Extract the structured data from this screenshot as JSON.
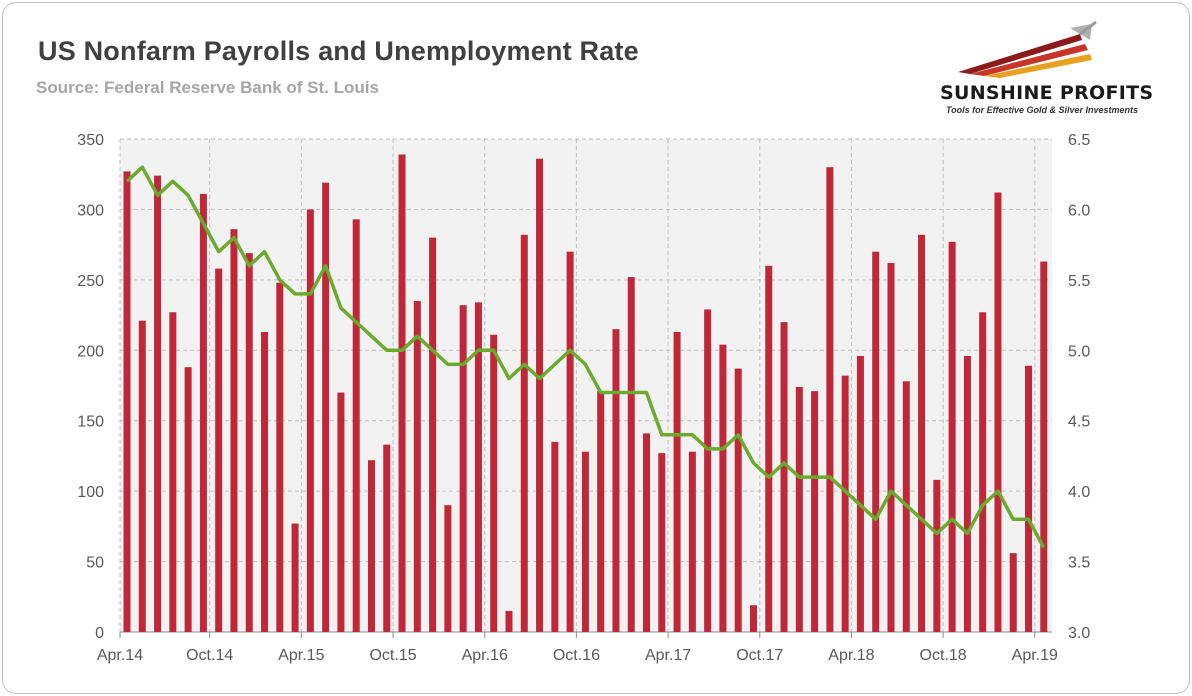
{
  "header": {
    "title": "US Nonfarm Payrolls and Unemployment Rate",
    "subtitle": "Source: Federal Reserve Bank of St. Louis"
  },
  "logo": {
    "name_part1": "SUNSHINE",
    "name_part2": "PROFITS",
    "tagline": "Tools for Effective Gold & Silver Investments"
  },
  "colors": {
    "bars": "#c0283a",
    "line": "#6aab2e",
    "plot_bg": "#f2f2f2",
    "grid": "#bfbfbf"
  },
  "chart_data": {
    "type": "bar",
    "title": "US Nonfarm Payrolls and Unemployment Rate",
    "x_tick_labels": [
      "Apr.14",
      "Oct.14",
      "Apr.15",
      "Oct.15",
      "Apr.16",
      "Oct.16",
      "Apr.17",
      "Oct.17",
      "Apr.18",
      "Oct.18",
      "Apr.19"
    ],
    "y_left": {
      "lim": [
        0,
        350
      ],
      "ticks": [
        0,
        50,
        100,
        150,
        200,
        250,
        300,
        350
      ]
    },
    "y_right": {
      "lim": [
        3.0,
        6.5
      ],
      "ticks": [
        "3.0",
        "3.5",
        "4.0",
        "4.5",
        "5.0",
        "5.5",
        "6.0",
        "6.5"
      ]
    },
    "grid": true,
    "months": [
      "2014-04",
      "2014-05",
      "2014-06",
      "2014-07",
      "2014-08",
      "2014-09",
      "2014-10",
      "2014-11",
      "2014-12",
      "2015-01",
      "2015-02",
      "2015-03",
      "2015-04",
      "2015-05",
      "2015-06",
      "2015-07",
      "2015-08",
      "2015-09",
      "2015-10",
      "2015-11",
      "2015-12",
      "2016-01",
      "2016-02",
      "2016-03",
      "2016-04",
      "2016-05",
      "2016-06",
      "2016-07",
      "2016-08",
      "2016-09",
      "2016-10",
      "2016-11",
      "2016-12",
      "2017-01",
      "2017-02",
      "2017-03",
      "2017-04",
      "2017-05",
      "2017-06",
      "2017-07",
      "2017-08",
      "2017-09",
      "2017-10",
      "2017-11",
      "2017-12",
      "2018-01",
      "2018-02",
      "2018-03",
      "2018-04",
      "2018-05",
      "2018-06",
      "2018-07",
      "2018-08",
      "2018-09",
      "2018-10",
      "2018-11",
      "2018-12",
      "2019-01",
      "2019-02",
      "2019-03",
      "2019-04"
    ],
    "series": [
      {
        "type": "bar",
        "axis": "left",
        "values": [
          327,
          221,
          324,
          227,
          188,
          311,
          258,
          286,
          269,
          213,
          248,
          77,
          300,
          319,
          170,
          293,
          122,
          133,
          339,
          235,
          280,
          90,
          232,
          234,
          211,
          15,
          282,
          336,
          135,
          270,
          128,
          171,
          215,
          252,
          141,
          127,
          213,
          128,
          229,
          204,
          187,
          19,
          260,
          220,
          174,
          171,
          330,
          182,
          196,
          270,
          262,
          178,
          282,
          108,
          277,
          196,
          227,
          312,
          56,
          189,
          263
        ]
      },
      {
        "type": "line",
        "axis": "right",
        "values": [
          6.2,
          6.3,
          6.1,
          6.2,
          6.1,
          5.9,
          5.7,
          5.8,
          5.6,
          5.7,
          5.5,
          5.4,
          5.4,
          5.6,
          5.3,
          5.2,
          5.1,
          5.0,
          5.0,
          5.1,
          5.0,
          4.9,
          4.9,
          5.0,
          5.0,
          4.8,
          4.9,
          4.8,
          4.9,
          5.0,
          4.9,
          4.7,
          4.7,
          4.7,
          4.7,
          4.4,
          4.4,
          4.4,
          4.3,
          4.3,
          4.4,
          4.2,
          4.1,
          4.2,
          4.1,
          4.1,
          4.1,
          4.0,
          3.9,
          3.8,
          4.0,
          3.9,
          3.8,
          3.7,
          3.8,
          3.7,
          3.9,
          4.0,
          3.8,
          3.8,
          3.6
        ]
      }
    ]
  }
}
